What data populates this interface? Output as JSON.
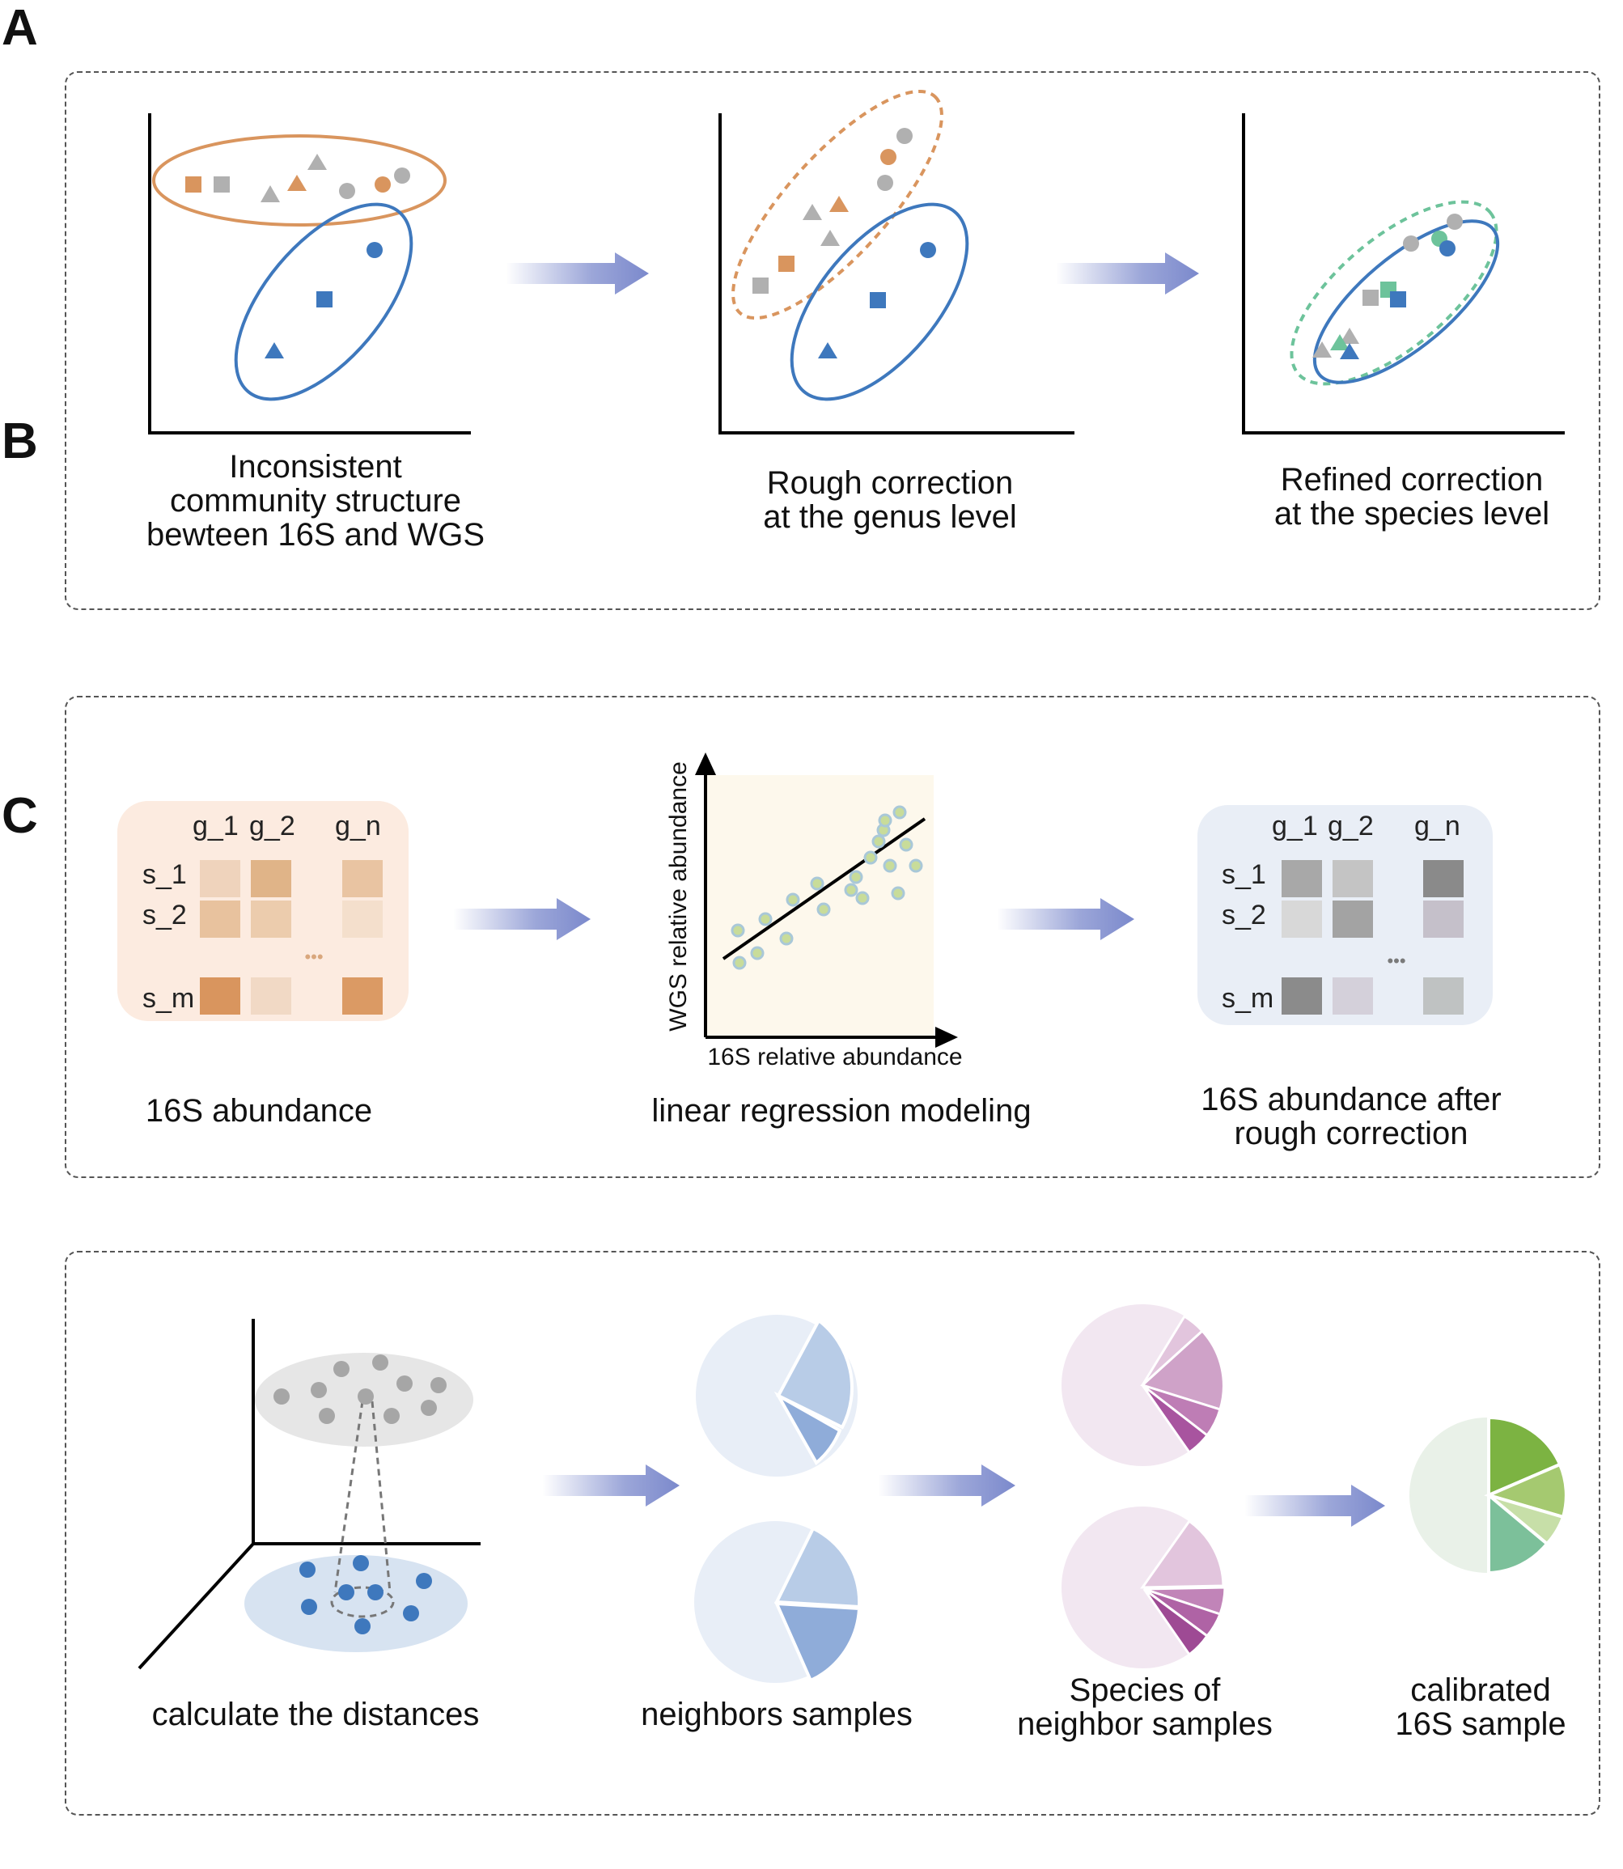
{
  "panel_letters": {
    "a": "A",
    "b": "B",
    "c": "C"
  },
  "panel_a": {
    "captions": [
      "Inconsistent\ncommunity structure\nbewteen 16S and WGS",
      "Rough correction\nat the genus level",
      "Refined correction\nat the species level"
    ]
  },
  "panel_b": {
    "matrix_columns": [
      "g_1",
      "g_2",
      "g_n"
    ],
    "matrix_rows": [
      "s_1",
      "s_2",
      "s_m"
    ],
    "ellipsis": "•••",
    "captions": [
      "16S abundance",
      "linear regression modeling",
      "16S abundance after\nrough correction"
    ],
    "regression": {
      "xlabel": "16S relative abundance",
      "ylabel": "WGS relative abundance"
    }
  },
  "panel_c": {
    "captions": [
      "calculate the distances",
      "neighbors samples",
      "Species of\nneighbor samples",
      "calibrated\n16S sample"
    ]
  },
  "colors": {
    "orange": "#D9955E",
    "gray": "#B0B0B0",
    "blue": "#3E78BD",
    "green": "#6DC39B",
    "arrow": "#7B89CC"
  }
}
